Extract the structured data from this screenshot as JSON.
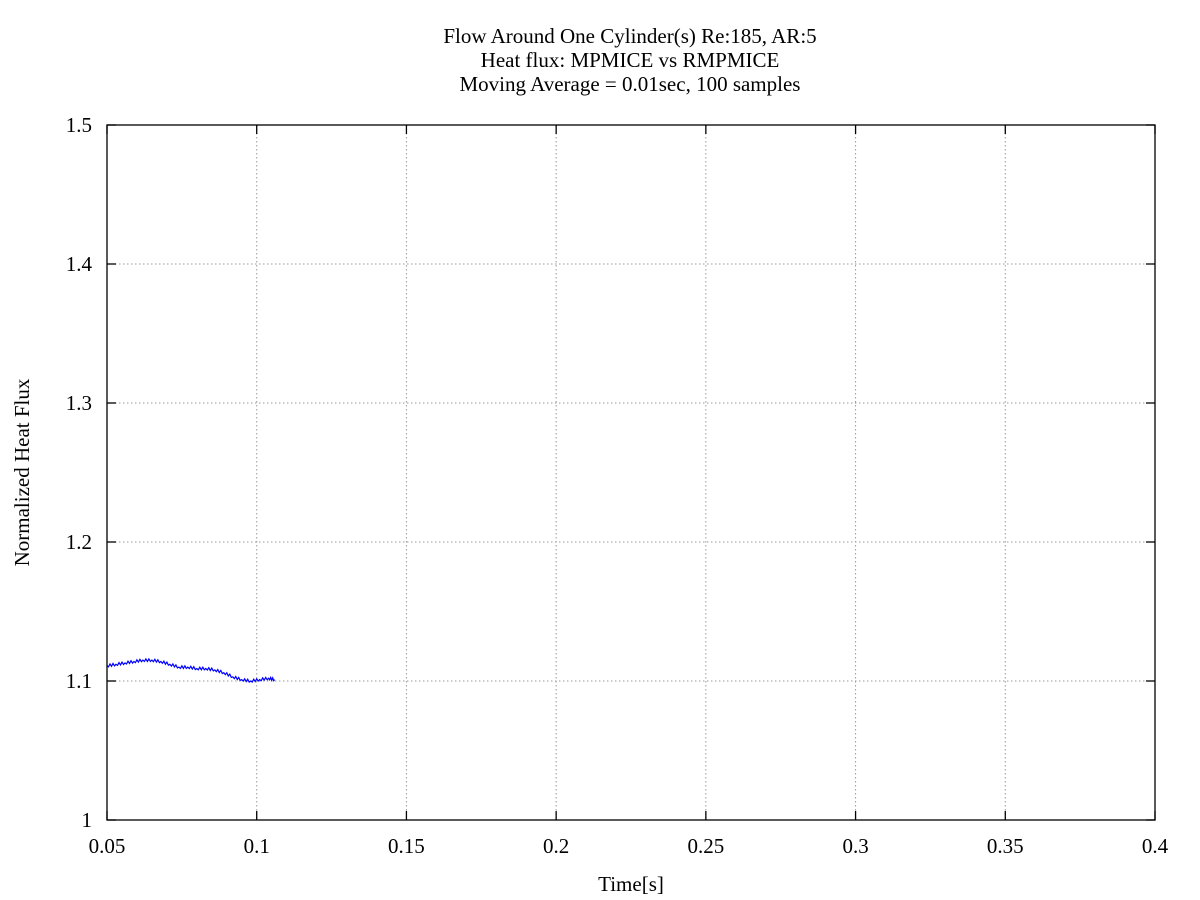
{
  "chart_data": {
    "type": "line",
    "title": "Flow Around One Cylinder(s) Re:185, AR:5",
    "subtitle_lines": [
      "Heat flux: MPMICE vs RMPMICE",
      "Moving Average = 0.01sec, 100 samples"
    ],
    "xlabel": "Time[s]",
    "ylabel": "Normalized Heat Flux",
    "xlim": [
      0.05,
      0.4
    ],
    "ylim": [
      1.0,
      1.5
    ],
    "x_ticks": [
      0.05,
      0.1,
      0.15,
      0.2,
      0.25,
      0.3,
      0.35,
      0.4
    ],
    "x_tick_labels": [
      "0.05",
      "0.1",
      "0.15",
      "0.2",
      "0.25",
      "0.3",
      "0.35",
      "0.4"
    ],
    "y_ticks": [
      1.0,
      1.1,
      1.2,
      1.3,
      1.4,
      1.5
    ],
    "y_tick_labels": [
      "1",
      "1.1",
      "1.2",
      "1.3",
      "1.4",
      "1.5"
    ],
    "grid": true,
    "series": [
      {
        "color": "#0000ff",
        "x": [
          0.05,
          0.053,
          0.056,
          0.059,
          0.062,
          0.065,
          0.068,
          0.071,
          0.074,
          0.077,
          0.08,
          0.083,
          0.086,
          0.089,
          0.092,
          0.095,
          0.098,
          0.101,
          0.104,
          0.106
        ],
        "y": [
          1.111,
          1.112,
          1.113,
          1.114,
          1.115,
          1.115,
          1.114,
          1.112,
          1.11,
          1.11,
          1.109,
          1.109,
          1.108,
          1.106,
          1.103,
          1.101,
          1.1,
          1.101,
          1.102,
          1.101
        ]
      }
    ]
  }
}
